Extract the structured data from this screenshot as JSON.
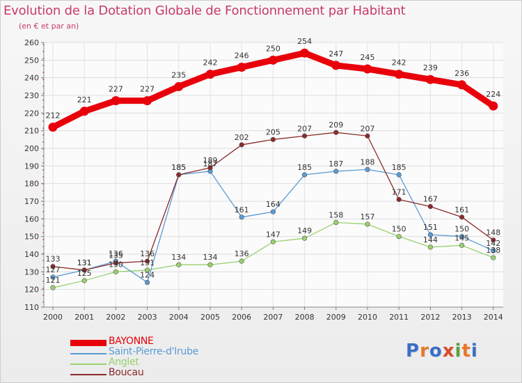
{
  "title": "Evolution de la Dotation Globale de Fonctionnement par Habitant",
  "subtitle": "(en € et par an)",
  "logo": {
    "text": "Proxiti",
    "letters": [
      "P",
      "r",
      "o",
      "x",
      "i",
      "t",
      "i"
    ],
    "colors": [
      "#3a6fc7",
      "#e8772a",
      "#3a6fc7",
      "#d94a2b",
      "#5aa33a",
      "#e8772a",
      "#3a6fc7"
    ]
  },
  "chart_data": {
    "type": "line",
    "title": "Evolution de la Dotation Globale de Fonctionnement par Habitant",
    "ylabel": "(en € et par an)",
    "ylim": [
      110,
      260
    ],
    "yticks": [
      110,
      120,
      130,
      140,
      150,
      160,
      170,
      180,
      190,
      200,
      210,
      220,
      230,
      240,
      250,
      260
    ],
    "x": [
      "2000",
      "2001",
      "2002",
      "2003",
      "2004",
      "2005",
      "2006",
      "2007",
      "2008",
      "2009",
      "2010",
      "2011",
      "2012",
      "2013",
      "2014"
    ],
    "grid": true,
    "series": [
      {
        "name": "BAYONNE",
        "color": "#e8000b",
        "values": [
          212,
          221,
          227,
          227,
          235,
          242,
          246,
          250,
          254,
          247,
          245,
          242,
          239,
          236,
          224
        ]
      },
      {
        "name": "Saint-Pierre-d'Irube",
        "color": "#5a9bd5",
        "values": [
          127,
          131,
          136,
          124,
          185,
          187,
          161,
          164,
          185,
          187,
          188,
          185,
          151,
          150,
          142
        ]
      },
      {
        "name": "Anglet",
        "color": "#99d16e",
        "values": [
          121,
          125,
          130,
          131,
          134,
          134,
          136,
          147,
          149,
          158,
          157,
          150,
          144,
          145,
          138
        ]
      },
      {
        "name": "Boucau",
        "color": "#8b2a2a",
        "values": [
          133,
          131,
          135,
          136,
          185,
          189,
          202,
          205,
          207,
          209,
          207,
          171,
          167,
          161,
          148
        ]
      }
    ]
  }
}
